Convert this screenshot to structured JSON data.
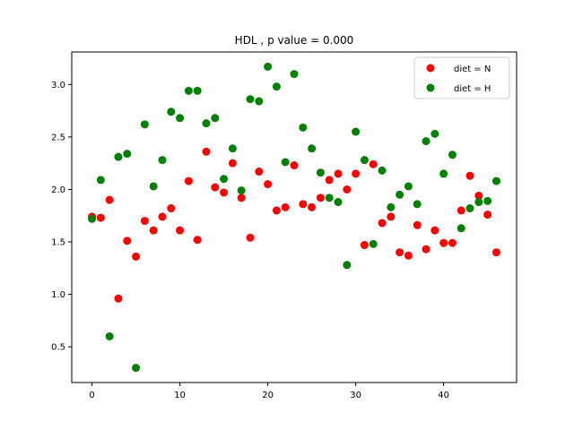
{
  "chart_data": {
    "type": "scatter",
    "title": "HDL , p value = 0.000",
    "xlabel": "",
    "ylabel": "",
    "xlim": [
      -2.3,
      48.3
    ],
    "ylim": [
      0.16,
      3.31
    ],
    "xticks": [
      0,
      10,
      20,
      30,
      40
    ],
    "yticks": [
      0.5,
      1.0,
      1.5,
      2.0,
      2.5,
      3.0
    ],
    "xtick_labels": [
      "0",
      "10",
      "20",
      "30",
      "40"
    ],
    "ytick_labels": [
      "0.5",
      "1.0",
      "1.5",
      "2.0",
      "2.5",
      "3.0"
    ],
    "grid": false,
    "legend_position": "top-right",
    "series": [
      {
        "name": "diet = N",
        "color": "#ff0000",
        "x": [
          0,
          1,
          2,
          3,
          4,
          5,
          6,
          7,
          8,
          9,
          10,
          11,
          12,
          13,
          14,
          15,
          16,
          17,
          18,
          19,
          20,
          21,
          22,
          23,
          24,
          25,
          26,
          27,
          28,
          29,
          30,
          31,
          32,
          33,
          34,
          35,
          36,
          37,
          38,
          39,
          40,
          41,
          42,
          43,
          44,
          45,
          46
        ],
        "y": [
          1.74,
          1.73,
          1.9,
          0.96,
          1.51,
          1.36,
          1.7,
          1.61,
          1.74,
          1.82,
          1.61,
          2.08,
          1.52,
          2.36,
          2.02,
          1.97,
          2.25,
          1.92,
          1.54,
          2.17,
          2.05,
          1.8,
          1.83,
          2.23,
          1.86,
          1.83,
          1.92,
          2.09,
          2.15,
          2.0,
          2.15,
          1.47,
          2.24,
          1.68,
          1.74,
          1.4,
          1.37,
          1.66,
          1.43,
          1.61,
          1.49,
          1.49,
          1.8,
          2.13,
          1.94,
          1.76,
          1.4
        ]
      },
      {
        "name": "diet = H",
        "color": "#008000",
        "x": [
          0,
          1,
          2,
          3,
          4,
          5,
          6,
          7,
          8,
          9,
          10,
          11,
          12,
          13,
          14,
          15,
          16,
          17,
          18,
          19,
          20,
          21,
          22,
          23,
          24,
          25,
          26,
          27,
          28,
          29,
          30,
          31,
          32,
          33,
          34,
          35,
          36,
          37,
          38,
          39,
          40,
          41,
          42,
          43,
          44,
          45,
          46
        ],
        "y": [
          1.72,
          2.09,
          0.6,
          2.31,
          2.34,
          0.3,
          2.62,
          2.03,
          2.28,
          2.74,
          2.68,
          2.94,
          2.94,
          2.63,
          2.68,
          2.1,
          2.39,
          1.99,
          2.86,
          2.84,
          3.17,
          2.98,
          2.26,
          3.1,
          2.59,
          2.39,
          2.16,
          1.92,
          1.88,
          1.28,
          2.55,
          2.28,
          1.48,
          2.18,
          1.83,
          1.95,
          2.03,
          1.86,
          2.46,
          2.53,
          2.15,
          2.33,
          1.63,
          1.82,
          1.88,
          1.89,
          2.08
        ]
      }
    ]
  }
}
